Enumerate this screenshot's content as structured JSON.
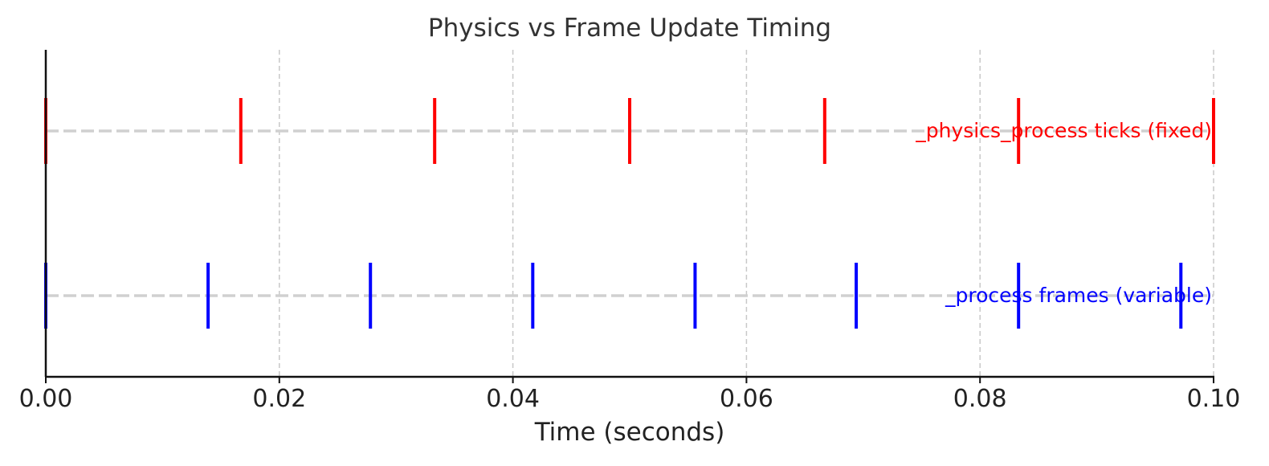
{
  "chart_data": {
    "type": "scatter",
    "title": "Physics vs Frame Update Timing",
    "xlabel": "Time (seconds)",
    "ylabel": "",
    "xlim": [
      0,
      0.1
    ],
    "x_ticks": [
      "0.00",
      "0.02",
      "0.04",
      "0.06",
      "0.08",
      "0.10"
    ],
    "grid": "vertical dashed",
    "series": [
      {
        "name": "_physics_process ticks (fixed)",
        "color": "#ff0000",
        "row": 1,
        "marker": "vertical line",
        "values": [
          0.0,
          0.0167,
          0.0333,
          0.05,
          0.0667,
          0.0833,
          0.1
        ]
      },
      {
        "name": "_process frames (variable)",
        "color": "#0000ff",
        "row": 0,
        "marker": "vertical line",
        "values": [
          0.0,
          0.0139,
          0.0278,
          0.0417,
          0.0556,
          0.0694,
          0.0833,
          0.0972
        ]
      }
    ]
  }
}
